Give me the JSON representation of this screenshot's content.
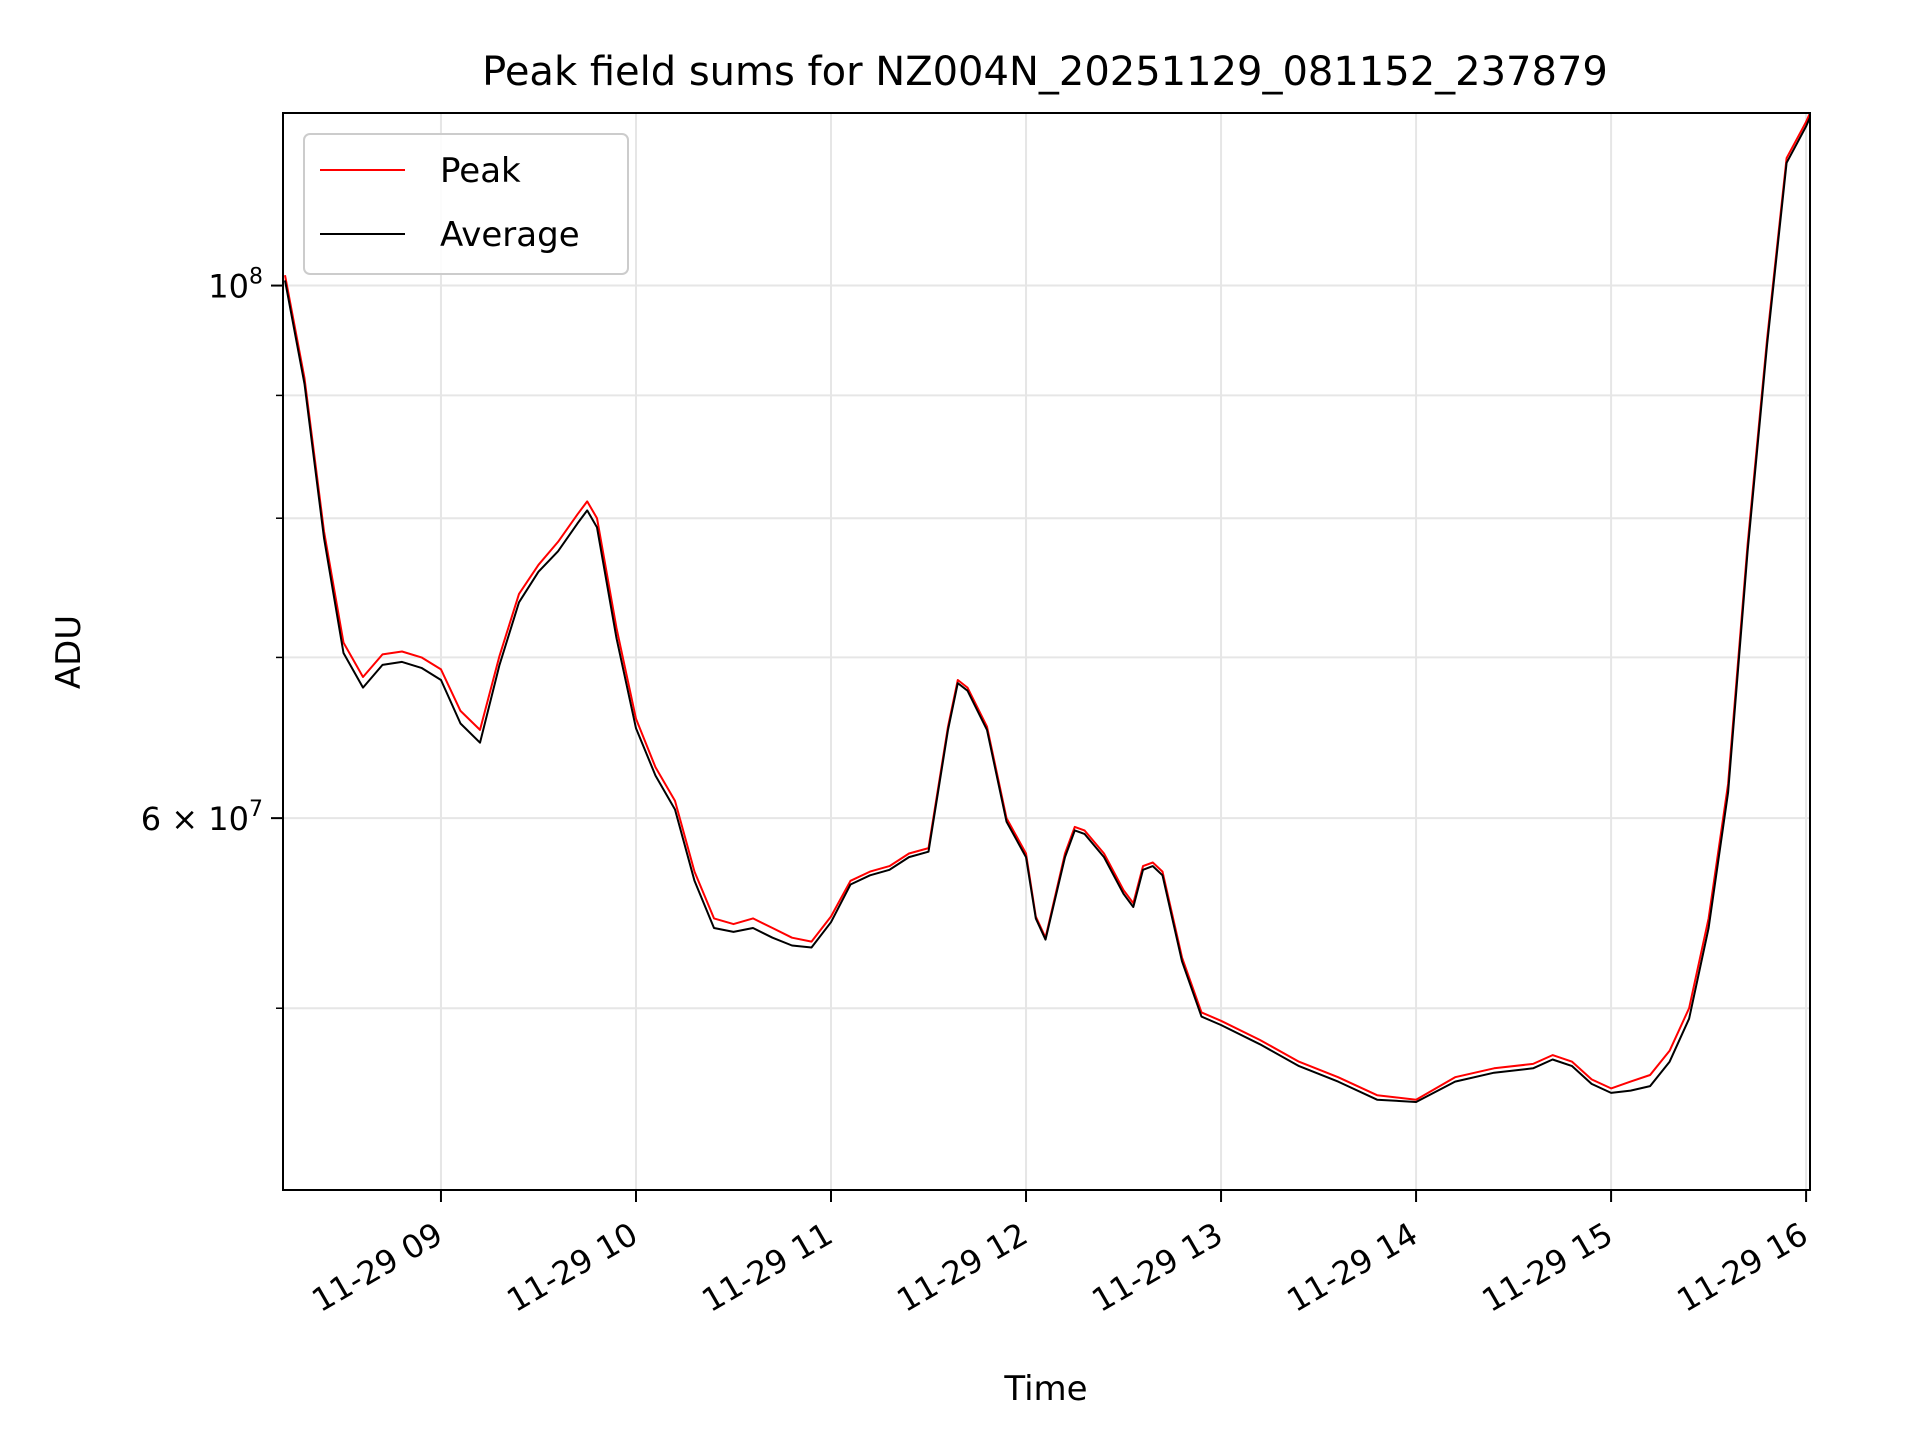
{
  "chart_data": {
    "type": "line",
    "title": "Peak field sums for NZ004N_20251129_081152_237879",
    "xlabel": "Time",
    "ylabel": "ADU",
    "yscale": "log",
    "grid": true,
    "legend_position": "upper-left",
    "xlim": [
      8.19,
      16.02
    ],
    "ylim": [
      42000000,
      118000000
    ],
    "x_ticks": [
      {
        "value": 9,
        "label": "11-29 09"
      },
      {
        "value": 10,
        "label": "11-29 10"
      },
      {
        "value": 11,
        "label": "11-29 11"
      },
      {
        "value": 12,
        "label": "11-29 12"
      },
      {
        "value": 13,
        "label": "11-29 13"
      },
      {
        "value": 14,
        "label": "11-29 14"
      },
      {
        "value": 15,
        "label": "11-29 15"
      },
      {
        "value": 16,
        "label": "11-29 16"
      }
    ],
    "y_major_ticks": [
      {
        "value": 100000000,
        "base": "10",
        "exp": "8"
      },
      {
        "value": 60000000,
        "base": "6 × 10",
        "exp": "7"
      }
    ],
    "y_minor_ticks": [
      50000000,
      70000000,
      80000000,
      90000000
    ],
    "x_units": "hour of day (2025-11-29)",
    "series": [
      {
        "name": "Peak",
        "color": "#ff0000",
        "x": [
          8.2,
          8.3,
          8.4,
          8.5,
          8.6,
          8.7,
          8.8,
          8.9,
          9.0,
          9.1,
          9.2,
          9.3,
          9.4,
          9.5,
          9.6,
          9.7,
          9.75,
          9.8,
          9.9,
          10.0,
          10.1,
          10.2,
          10.3,
          10.4,
          10.5,
          10.6,
          10.7,
          10.8,
          10.9,
          11.0,
          11.1,
          11.2,
          11.3,
          11.4,
          11.5,
          11.6,
          11.65,
          11.7,
          11.8,
          11.9,
          12.0,
          12.05,
          12.1,
          12.2,
          12.25,
          12.3,
          12.4,
          12.5,
          12.55,
          12.6,
          12.65,
          12.7,
          12.8,
          12.9,
          13.0,
          13.2,
          13.4,
          13.6,
          13.8,
          14.0,
          14.2,
          14.4,
          14.6,
          14.7,
          14.8,
          14.9,
          15.0,
          15.1,
          15.2,
          15.3,
          15.4,
          15.5,
          15.6,
          15.7,
          15.8,
          15.9,
          16.0,
          16.02
        ],
        "values": [
          101000000,
          91500000,
          79000000,
          71000000,
          68700000,
          70200000,
          70400000,
          70000000,
          69200000,
          66500000,
          65300000,
          70100000,
          74400000,
          76500000,
          78200000,
          80300000,
          81300000,
          80000000,
          72000000,
          66000000,
          63000000,
          61000000,
          57000000,
          54500000,
          54200000,
          54500000,
          54000000,
          53500000,
          53300000,
          54600000,
          56500000,
          57000000,
          57300000,
          58000000,
          58300000,
          65500000,
          68500000,
          68000000,
          65500000,
          60000000,
          58000000,
          54600000,
          53500000,
          58000000,
          59500000,
          59300000,
          58000000,
          56000000,
          55300000,
          57300000,
          57500000,
          57000000,
          52500000,
          49800000,
          49400000,
          48500000,
          47500000,
          46800000,
          46000000,
          45800000,
          46800000,
          47200000,
          47400000,
          47800000,
          47500000,
          46700000,
          46300000,
          46600000,
          46900000,
          48000000,
          50000000,
          54500000,
          62000000,
          78000000,
          95000000,
          113000000,
          117000000,
          118000000
        ]
      },
      {
        "name": "Average",
        "color": "#000000",
        "x": [
          8.2,
          8.3,
          8.4,
          8.5,
          8.6,
          8.7,
          8.8,
          8.9,
          9.0,
          9.1,
          9.2,
          9.3,
          9.4,
          9.5,
          9.6,
          9.7,
          9.75,
          9.8,
          9.9,
          10.0,
          10.1,
          10.2,
          10.3,
          10.4,
          10.5,
          10.6,
          10.7,
          10.8,
          10.9,
          11.0,
          11.1,
          11.2,
          11.3,
          11.4,
          11.5,
          11.6,
          11.65,
          11.7,
          11.8,
          11.9,
          12.0,
          12.05,
          12.1,
          12.2,
          12.25,
          12.3,
          12.4,
          12.5,
          12.55,
          12.6,
          12.65,
          12.7,
          12.8,
          12.9,
          13.0,
          13.2,
          13.4,
          13.6,
          13.8,
          14.0,
          14.2,
          14.4,
          14.6,
          14.7,
          14.8,
          14.9,
          15.0,
          15.1,
          15.2,
          15.3,
          15.4,
          15.5,
          15.6,
          15.7,
          15.8,
          15.9,
          16.0,
          16.02
        ],
        "values": [
          100500000,
          91000000,
          78500000,
          70300000,
          68000000,
          69500000,
          69700000,
          69300000,
          68500000,
          65700000,
          64500000,
          69500000,
          73800000,
          76000000,
          77500000,
          79600000,
          80600000,
          79300000,
          71300000,
          65400000,
          62500000,
          60500000,
          56500000,
          54000000,
          53800000,
          54000000,
          53500000,
          53100000,
          53000000,
          54300000,
          56300000,
          56800000,
          57100000,
          57800000,
          58100000,
          65300000,
          68300000,
          67800000,
          65300000,
          59800000,
          57800000,
          54500000,
          53400000,
          57800000,
          59300000,
          59100000,
          57800000,
          55800000,
          55100000,
          57100000,
          57300000,
          56800000,
          52300000,
          49600000,
          49200000,
          48300000,
          47300000,
          46600000,
          45800000,
          45700000,
          46600000,
          47000000,
          47200000,
          47600000,
          47300000,
          46500000,
          46100000,
          46200000,
          46400000,
          47500000,
          49500000,
          54000000,
          61500000,
          77500000,
          94500000,
          112500000,
          116500000,
          117500000
        ]
      }
    ]
  }
}
